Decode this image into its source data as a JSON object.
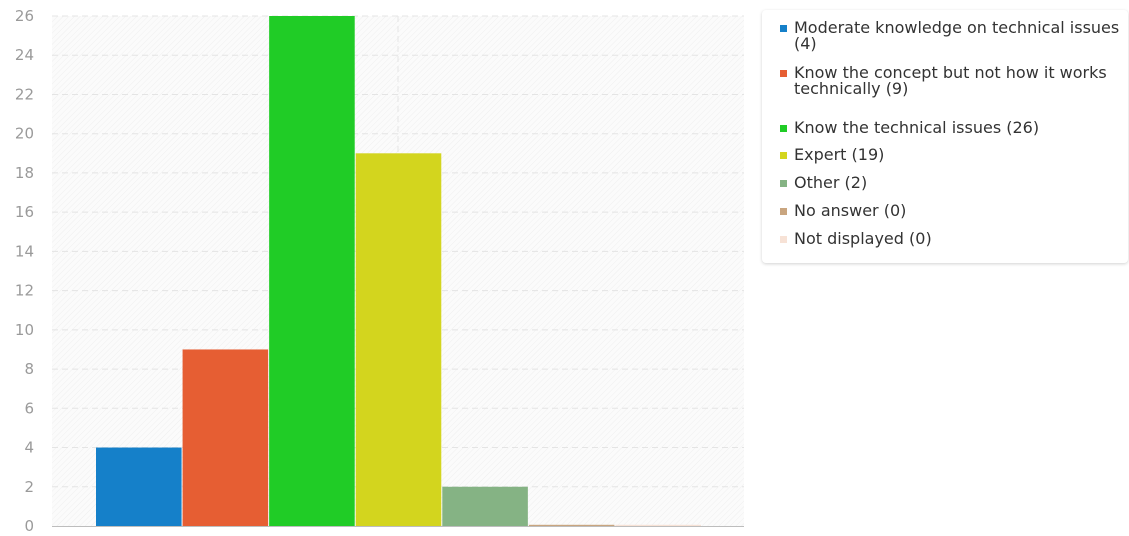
{
  "chart_data": {
    "type": "bar",
    "title": "",
    "xlabel": "",
    "ylabel": "",
    "ylim": [
      0,
      26
    ],
    "yticks": [
      0,
      2,
      4,
      6,
      8,
      10,
      12,
      14,
      16,
      18,
      20,
      22,
      24,
      26
    ],
    "grid": true,
    "legend_position": "right",
    "series": [
      {
        "name": "Moderate knowledge on technical issues (4)",
        "value": 4,
        "color": "#1580c9"
      },
      {
        "name": "Know the concept but not how it works technically (9)",
        "value": 9,
        "color": "#e65e33"
      },
      {
        "name": "Know the technical issues (26)",
        "value": 26,
        "color": "#20cc26"
      },
      {
        "name": "Expert (19)",
        "value": 19,
        "color": "#d3d51e"
      },
      {
        "name": "Other (2)",
        "value": 2,
        "color": "#85b384"
      },
      {
        "name": "No answer (0)",
        "value": 0,
        "color": "#c9a57f"
      },
      {
        "name": "Not displayed (0)",
        "value": 0,
        "color": "#f7e2d6"
      }
    ]
  }
}
